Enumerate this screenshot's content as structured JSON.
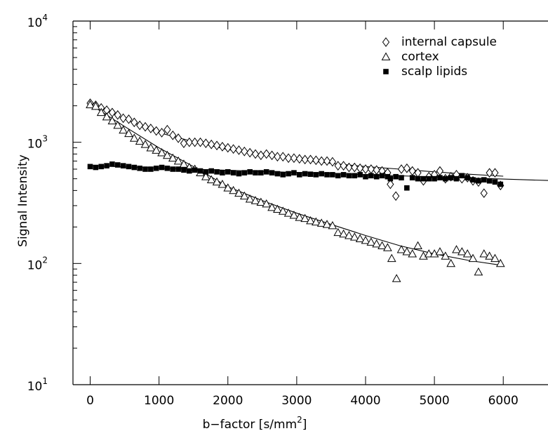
{
  "chart_data": {
    "type": "scatter",
    "xlabel": "b−factor [s/mm",
    "xlabel_sup": "2",
    "xlabel_end": "]",
    "ylabel": "Signal Intensity",
    "yscale": "log",
    "xlim": [
      -250,
      6650
    ],
    "ylim": [
      10,
      10000
    ],
    "grid": false,
    "legend_position": "top-right",
    "x_ticks": [
      0,
      1000,
      2000,
      3000,
      4000,
      5000,
      6000
    ],
    "x_tick_labels": [
      "0",
      "1000",
      "2000",
      "3000",
      "4000",
      "5000",
      "6000"
    ],
    "y_ticks": [
      {
        "value": 10,
        "base": "10",
        "exp": "1"
      },
      {
        "value": 100,
        "base": "10",
        "exp": "2"
      },
      {
        "value": 1000,
        "base": "10",
        "exp": "3"
      },
      {
        "value": 10000,
        "base": "10",
        "exp": "4"
      }
    ],
    "series": [
      {
        "name": "internal capsule",
        "marker": "diamond",
        "points": [
          [
            0,
            2100
          ],
          [
            80,
            2020
          ],
          [
            160,
            1920
          ],
          [
            240,
            1840
          ],
          [
            320,
            1760
          ],
          [
            400,
            1680
          ],
          [
            480,
            1580
          ],
          [
            560,
            1550
          ],
          [
            640,
            1460
          ],
          [
            720,
            1380
          ],
          [
            800,
            1340
          ],
          [
            880,
            1300
          ],
          [
            960,
            1240
          ],
          [
            1040,
            1200
          ],
          [
            1120,
            1270
          ],
          [
            1200,
            1140
          ],
          [
            1280,
            1080
          ],
          [
            1360,
            980
          ],
          [
            1440,
            1000
          ],
          [
            1520,
            1000
          ],
          [
            1600,
            1000
          ],
          [
            1680,
            980
          ],
          [
            1760,
            960
          ],
          [
            1840,
            940
          ],
          [
            1920,
            920
          ],
          [
            2000,
            900
          ],
          [
            2080,
            880
          ],
          [
            2160,
            860
          ],
          [
            2240,
            840
          ],
          [
            2320,
            820
          ],
          [
            2400,
            800
          ],
          [
            2480,
            780
          ],
          [
            2560,
            800
          ],
          [
            2640,
            780
          ],
          [
            2720,
            760
          ],
          [
            2800,
            760
          ],
          [
            2880,
            740
          ],
          [
            2960,
            740
          ],
          [
            3040,
            730
          ],
          [
            3120,
            720
          ],
          [
            3200,
            720
          ],
          [
            3280,
            710
          ],
          [
            3360,
            700
          ],
          [
            3440,
            700
          ],
          [
            3520,
            690
          ],
          [
            3600,
            640
          ],
          [
            3680,
            640
          ],
          [
            3760,
            620
          ],
          [
            3840,
            620
          ],
          [
            3920,
            610
          ],
          [
            4000,
            600
          ],
          [
            4080,
            600
          ],
          [
            4160,
            590
          ],
          [
            4240,
            580
          ],
          [
            4320,
            560
          ],
          [
            4360,
            450
          ],
          [
            4440,
            360
          ],
          [
            4520,
            600
          ],
          [
            4600,
            610
          ],
          [
            4680,
            580
          ],
          [
            4760,
            560
          ],
          [
            4840,
            480
          ],
          [
            4920,
            520
          ],
          [
            5000,
            540
          ],
          [
            5080,
            580
          ],
          [
            5160,
            500
          ],
          [
            5240,
            520
          ],
          [
            5320,
            540
          ],
          [
            5400,
            500
          ],
          [
            5480,
            510
          ],
          [
            5560,
            480
          ],
          [
            5640,
            470
          ],
          [
            5720,
            380
          ],
          [
            5800,
            560
          ],
          [
            5880,
            560
          ],
          [
            5960,
            440
          ]
        ]
      },
      {
        "name": "cortex",
        "marker": "triangle",
        "points": [
          [
            0,
            2040
          ],
          [
            80,
            1980
          ],
          [
            160,
            1760
          ],
          [
            240,
            1620
          ],
          [
            320,
            1500
          ],
          [
            400,
            1380
          ],
          [
            480,
            1260
          ],
          [
            560,
            1180
          ],
          [
            640,
            1080
          ],
          [
            720,
            1020
          ],
          [
            800,
            960
          ],
          [
            880,
            900
          ],
          [
            960,
            860
          ],
          [
            1040,
            820
          ],
          [
            1120,
            780
          ],
          [
            1200,
            740
          ],
          [
            1280,
            700
          ],
          [
            1360,
            660
          ],
          [
            1440,
            620
          ],
          [
            1520,
            600
          ],
          [
            1600,
            560
          ],
          [
            1680,
            520
          ],
          [
            1760,
            490
          ],
          [
            1840,
            470
          ],
          [
            1920,
            450
          ],
          [
            2000,
            420
          ],
          [
            2080,
            400
          ],
          [
            2160,
            380
          ],
          [
            2240,
            360
          ],
          [
            2320,
            340
          ],
          [
            2400,
            330
          ],
          [
            2480,
            320
          ],
          [
            2560,
            310
          ],
          [
            2640,
            290
          ],
          [
            2720,
            280
          ],
          [
            2800,
            270
          ],
          [
            2880,
            260
          ],
          [
            2960,
            250
          ],
          [
            3040,
            240
          ],
          [
            3120,
            235
          ],
          [
            3200,
            225
          ],
          [
            3280,
            220
          ],
          [
            3360,
            215
          ],
          [
            3440,
            210
          ],
          [
            3520,
            205
          ],
          [
            3600,
            180
          ],
          [
            3680,
            175
          ],
          [
            3760,
            170
          ],
          [
            3840,
            165
          ],
          [
            3920,
            160
          ],
          [
            4000,
            155
          ],
          [
            4080,
            150
          ],
          [
            4160,
            145
          ],
          [
            4240,
            140
          ],
          [
            4320,
            135
          ],
          [
            4380,
            110
          ],
          [
            4450,
            75
          ],
          [
            4520,
            130
          ],
          [
            4600,
            125
          ],
          [
            4680,
            120
          ],
          [
            4760,
            140
          ],
          [
            4840,
            115
          ],
          [
            4920,
            120
          ],
          [
            5000,
            120
          ],
          [
            5080,
            125
          ],
          [
            5160,
            115
          ],
          [
            5240,
            100
          ],
          [
            5320,
            130
          ],
          [
            5400,
            125
          ],
          [
            5480,
            120
          ],
          [
            5560,
            110
          ],
          [
            5640,
            85
          ],
          [
            5720,
            120
          ],
          [
            5800,
            115
          ],
          [
            5880,
            110
          ],
          [
            5960,
            100
          ]
        ]
      },
      {
        "name": "scalp lipids",
        "marker": "square-filled",
        "points": [
          [
            0,
            630
          ],
          [
            80,
            620
          ],
          [
            160,
            630
          ],
          [
            240,
            640
          ],
          [
            320,
            660
          ],
          [
            400,
            650
          ],
          [
            480,
            640
          ],
          [
            560,
            630
          ],
          [
            640,
            620
          ],
          [
            720,
            610
          ],
          [
            800,
            600
          ],
          [
            880,
            600
          ],
          [
            960,
            610
          ],
          [
            1040,
            620
          ],
          [
            1120,
            610
          ],
          [
            1200,
            600
          ],
          [
            1280,
            600
          ],
          [
            1360,
            590
          ],
          [
            1440,
            580
          ],
          [
            1520,
            590
          ],
          [
            1600,
            580
          ],
          [
            1680,
            570
          ],
          [
            1760,
            580
          ],
          [
            1840,
            570
          ],
          [
            1920,
            560
          ],
          [
            2000,
            570
          ],
          [
            2080,
            560
          ],
          [
            2160,
            550
          ],
          [
            2240,
            560
          ],
          [
            2320,
            570
          ],
          [
            2400,
            560
          ],
          [
            2480,
            560
          ],
          [
            2560,
            570
          ],
          [
            2640,
            560
          ],
          [
            2720,
            550
          ],
          [
            2800,
            540
          ],
          [
            2880,
            550
          ],
          [
            2960,
            560
          ],
          [
            3040,
            540
          ],
          [
            3120,
            550
          ],
          [
            3200,
            545
          ],
          [
            3280,
            540
          ],
          [
            3360,
            550
          ],
          [
            3440,
            540
          ],
          [
            3520,
            540
          ],
          [
            3600,
            530
          ],
          [
            3680,
            540
          ],
          [
            3760,
            530
          ],
          [
            3840,
            530
          ],
          [
            3920,
            540
          ],
          [
            4000,
            520
          ],
          [
            4080,
            530
          ],
          [
            4160,
            520
          ],
          [
            4240,
            530
          ],
          [
            4320,
            520
          ],
          [
            4360,
            500
          ],
          [
            4440,
            520
          ],
          [
            4520,
            510
          ],
          [
            4600,
            420
          ],
          [
            4680,
            510
          ],
          [
            4760,
            500
          ],
          [
            4840,
            500
          ],
          [
            4920,
            500
          ],
          [
            5000,
            500
          ],
          [
            5080,
            510
          ],
          [
            5160,
            500
          ],
          [
            5240,
            510
          ],
          [
            5320,
            500
          ],
          [
            5400,
            530
          ],
          [
            5480,
            510
          ],
          [
            5560,
            490
          ],
          [
            5640,
            480
          ],
          [
            5720,
            490
          ],
          [
            5800,
            480
          ],
          [
            5880,
            470
          ],
          [
            5960,
            450
          ]
        ]
      }
    ],
    "fits": [
      {
        "series": "internal capsule",
        "x": [
          0,
          500,
          1000,
          1500,
          2000,
          2500,
          3000,
          3500,
          4000,
          4500,
          5000,
          5500,
          6000
        ],
        "y": [
          2100,
          1550,
          1200,
          1010,
          870,
          790,
          720,
          670,
          630,
          600,
          570,
          545,
          525
        ]
      },
      {
        "series": "cortex",
        "x": [
          0,
          500,
          1000,
          1500,
          2000,
          2500,
          3000,
          3500,
          4000,
          4500,
          5000,
          5500,
          5950
        ],
        "y": [
          2050,
          1350,
          900,
          630,
          430,
          330,
          260,
          210,
          170,
          140,
          120,
          106,
          97
        ]
      },
      {
        "series": "scalp lipids",
        "x": [
          0,
          1000,
          2000,
          3000,
          4000,
          5000,
          6000,
          6650
        ],
        "y": [
          640,
          612,
          587,
          563,
          540,
          518,
          497,
          484
        ]
      }
    ]
  }
}
